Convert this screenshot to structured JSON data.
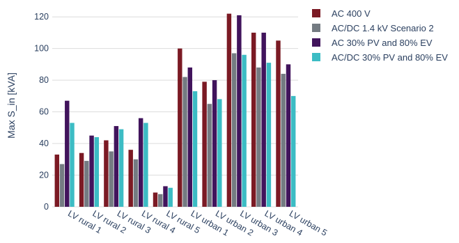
{
  "chart_data": {
    "type": "bar",
    "title": "",
    "xlabel": "",
    "ylabel": "Max S_in [kVA]",
    "ylim": [
      0,
      128
    ],
    "yticks": [
      0,
      20,
      40,
      60,
      80,
      100,
      120
    ],
    "grid": true,
    "legend_position": "top-right",
    "categories": [
      "LV rural 1",
      "LV rural 2",
      "LV rural 3",
      "LV rural 4",
      "LV rural 5",
      "LV urban 1",
      "LV urban 2",
      "LV urban 3",
      "LV urban 4",
      "LV urban 5"
    ],
    "series": [
      {
        "name": "AC 400 V",
        "color": "#7b1a24",
        "values": [
          33,
          34,
          42,
          36,
          9,
          100,
          79,
          122,
          110,
          105
        ]
      },
      {
        "name": "AC/DC 1.4 kV Scenario 2",
        "color": "#747b82",
        "values": [
          27,
          29,
          35,
          30,
          8,
          82,
          65,
          97,
          88,
          84
        ]
      },
      {
        "name": "AC 30% PV and 80% EV",
        "color": "#41145c",
        "values": [
          67,
          45,
          51,
          56,
          13,
          88,
          80,
          121,
          110,
          90
        ]
      },
      {
        "name": "AC/DC 30% PV and 80% EV",
        "color": "#3cbcc4",
        "values": [
          53,
          44,
          49,
          53,
          12,
          73,
          68,
          96,
          91,
          70
        ]
      }
    ]
  }
}
